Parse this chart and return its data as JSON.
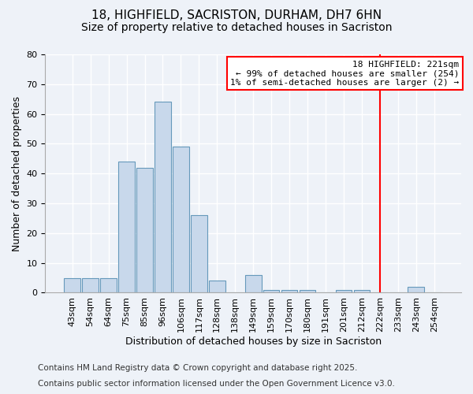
{
  "title1": "18, HIGHFIELD, SACRISTON, DURHAM, DH7 6HN",
  "title2": "Size of property relative to detached houses in Sacriston",
  "xlabel": "Distribution of detached houses by size in Sacriston",
  "ylabel": "Number of detached properties",
  "categories": [
    "43sqm",
    "54sqm",
    "64sqm",
    "75sqm",
    "85sqm",
    "96sqm",
    "106sqm",
    "117sqm",
    "128sqm",
    "138sqm",
    "149sqm",
    "159sqm",
    "170sqm",
    "180sqm",
    "191sqm",
    "201sqm",
    "212sqm",
    "222sqm",
    "233sqm",
    "243sqm",
    "254sqm"
  ],
  "values": [
    5,
    5,
    5,
    44,
    42,
    64,
    49,
    26,
    4,
    0,
    6,
    1,
    1,
    1,
    0,
    1,
    1,
    0,
    0,
    2,
    0
  ],
  "bar_color": "#c8d8eb",
  "bar_edge_color": "#6699bb",
  "ylim": [
    0,
    80
  ],
  "yticks": [
    0,
    10,
    20,
    30,
    40,
    50,
    60,
    70,
    80
  ],
  "red_line_index": 17,
  "annotation_text": "18 HIGHFIELD: 221sqm\n← 99% of detached houses are smaller (254)\n1% of semi-detached houses are larger (2) →",
  "footer1": "Contains HM Land Registry data © Crown copyright and database right 2025.",
  "footer2": "Contains public sector information licensed under the Open Government Licence v3.0.",
  "background_color": "#eef2f8",
  "grid_color": "#ffffff",
  "title_fontsize": 11,
  "subtitle_fontsize": 10,
  "axis_label_fontsize": 9,
  "tick_fontsize": 8,
  "annotation_fontsize": 8,
  "footer_fontsize": 7.5
}
